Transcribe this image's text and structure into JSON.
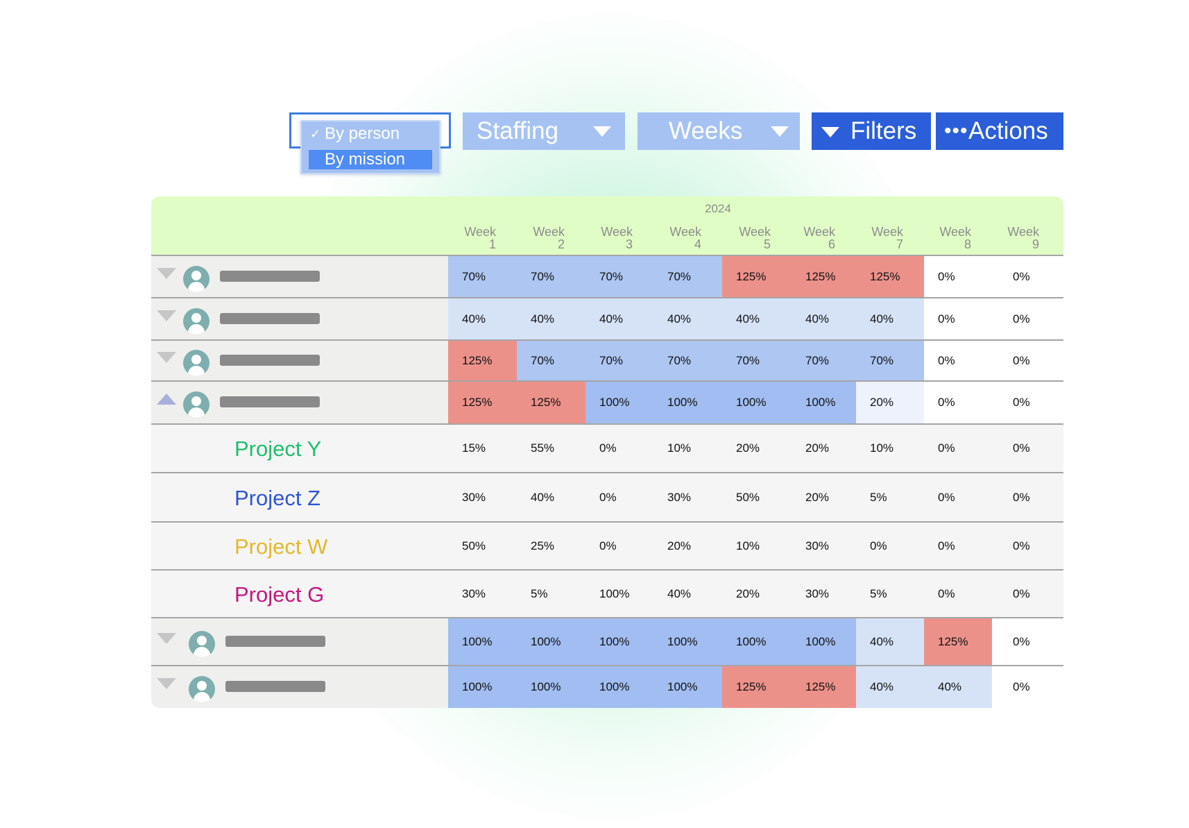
{
  "toolbar": {
    "view_options": [
      {
        "label": "By person",
        "checked": true
      },
      {
        "label": "By mission",
        "highlighted": true
      }
    ],
    "staffing_label": "Staffing",
    "period_label": "Weeks",
    "filters_label": "Filters",
    "actions_dots": "•••",
    "actions_label": "Actions"
  },
  "grid": {
    "year": "2024",
    "weeks": [
      {
        "label": "Week",
        "num": "1"
      },
      {
        "label": "Week",
        "num": "2"
      },
      {
        "label": "Week",
        "num": "3"
      },
      {
        "label": "Week",
        "num": "4"
      },
      {
        "label": "Week",
        "num": "5"
      },
      {
        "label": "Week",
        "num": "6"
      },
      {
        "label": "Week",
        "num": "7"
      },
      {
        "label": "Week",
        "num": "8"
      },
      {
        "label": "Week",
        "num": "9"
      }
    ],
    "rows": [
      {
        "type": "person",
        "toggle": "collapsed",
        "values": [
          "70%",
          "70%",
          "70%",
          "70%",
          "125%",
          "125%",
          "125%",
          "0%",
          "0%"
        ]
      },
      {
        "type": "person",
        "toggle": "collapsed",
        "values": [
          "40%",
          "40%",
          "40%",
          "40%",
          "40%",
          "40%",
          "40%",
          "0%",
          "0%"
        ]
      },
      {
        "type": "person",
        "toggle": "collapsed",
        "values": [
          "125%",
          "70%",
          "70%",
          "70%",
          "70%",
          "70%",
          "70%",
          "0%",
          "0%"
        ]
      },
      {
        "type": "person",
        "toggle": "expanded",
        "values": [
          "125%",
          "125%",
          "100%",
          "100%",
          "100%",
          "100%",
          "20%",
          "0%",
          "0%"
        ]
      },
      {
        "type": "project",
        "name": "Project Y",
        "color": "#1fbf6c",
        "values": [
          "15%",
          "55%",
          "0%",
          "10%",
          "20%",
          "20%",
          "10%",
          "0%",
          "0%"
        ]
      },
      {
        "type": "project",
        "name": "Project Z",
        "color": "#2f55d4",
        "values": [
          "30%",
          "40%",
          "0%",
          "30%",
          "50%",
          "20%",
          "5%",
          "0%",
          "0%"
        ]
      },
      {
        "type": "project",
        "name": "Project W",
        "color": "#e2b92c",
        "values": [
          "50%",
          "25%",
          "0%",
          "20%",
          "10%",
          "30%",
          "0%",
          "0%",
          "0%"
        ]
      },
      {
        "type": "project",
        "name": "Project G",
        "color": "#c3187f",
        "values": [
          "30%",
          "5%",
          "100%",
          "40%",
          "20%",
          "30%",
          "5%",
          "0%",
          "0%"
        ]
      },
      {
        "type": "person",
        "toggle": "collapsed",
        "values": [
          "100%",
          "100%",
          "100%",
          "100%",
          "100%",
          "100%",
          "40%",
          "125%",
          "0%"
        ]
      },
      {
        "type": "person",
        "toggle": "collapsed",
        "values": [
          "100%",
          "100%",
          "100%",
          "100%",
          "125%",
          "125%",
          "40%",
          "40%",
          "0%"
        ]
      }
    ],
    "load_colors": {
      "over": "#ec918a",
      "full": "#a1bdf1",
      "mid": "#adc6f2",
      "low": "#d6e3f7",
      "minimal": "#edf2fc",
      "none": "#ffffff"
    }
  }
}
